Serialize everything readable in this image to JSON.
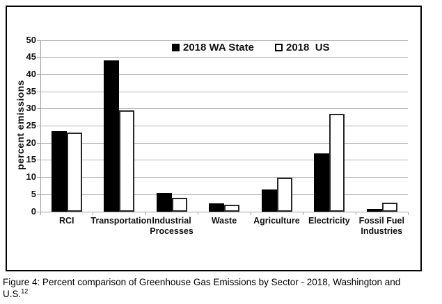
{
  "chart_data": {
    "type": "bar",
    "categories": [
      "RCI",
      "Transportation",
      "Industrial\nProcesses",
      "Waste",
      "Agriculture",
      "Electricity",
      "Fossil Fuel\nIndustries"
    ],
    "series": [
      {
        "name": "2018 WA State",
        "color": "#000000",
        "values": [
          23.5,
          44.2,
          5.4,
          2.5,
          6.5,
          17.0,
          0.8
        ]
      },
      {
        "name": "2018  US",
        "color": "#ffffff",
        "values": [
          23.0,
          29.5,
          4.1,
          2.1,
          9.9,
          28.5,
          2.7
        ]
      }
    ],
    "title": "",
    "xlabel": "",
    "ylabel": "percent emissions",
    "ylim": [
      0,
      50
    ],
    "ytick_step": 5,
    "grid": "horizontal",
    "legend_position": "top-center-inside",
    "colors": {
      "grid": "#b3b3b3",
      "axis": "#a1a1a1",
      "bar_border": "#262626",
      "frame_border": "#000000"
    }
  },
  "caption": {
    "line1": "Figure 4: Percent comparison of Greenhouse Gas Emissions by Sector - 2018, Washington and",
    "line2": "U.S.",
    "footnote": "12"
  }
}
